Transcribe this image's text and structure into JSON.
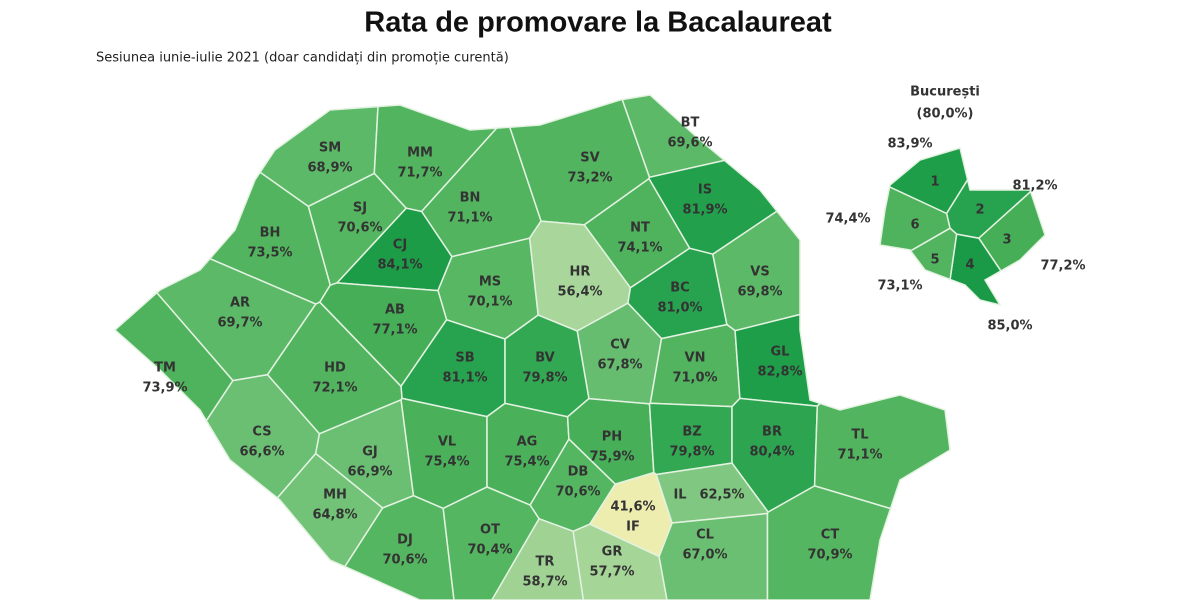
{
  "header": {
    "title": "Rata de promovare la Bacalaureat",
    "subtitle": "Sesiunea iunie-iulie 2021 (doar candidați din promoție curentă)"
  },
  "counties": [
    {
      "code": "SM",
      "value": "68,9%",
      "color": "#5cb968"
    },
    {
      "code": "MM",
      "value": "71,7%",
      "color": "#52b45f"
    },
    {
      "code": "BT",
      "value": "69,6%",
      "color": "#5cb968"
    },
    {
      "code": "SV",
      "value": "73,2%",
      "color": "#52b45f"
    },
    {
      "code": "IS",
      "value": "81,9%",
      "color": "#22a04c"
    },
    {
      "code": "BN",
      "value": "71,1%",
      "color": "#52b45f"
    },
    {
      "code": "SJ",
      "value": "70,6%",
      "color": "#55b661"
    },
    {
      "code": "CJ",
      "value": "84,1%",
      "color": "#1d9c48"
    },
    {
      "code": "BH",
      "value": "73,5%",
      "color": "#52b45f"
    },
    {
      "code": "NT",
      "value": "74,1%",
      "color": "#4fb25c"
    },
    {
      "code": "HR",
      "value": "56,4%",
      "color": "#a9d79b"
    },
    {
      "code": "MS",
      "value": "70,1%",
      "color": "#57b763"
    },
    {
      "code": "BC",
      "value": "81,0%",
      "color": "#27a24e"
    },
    {
      "code": "VS",
      "value": "69,8%",
      "color": "#5cb968"
    },
    {
      "code": "AR",
      "value": "69,7%",
      "color": "#5cb968"
    },
    {
      "code": "AB",
      "value": "77,1%",
      "color": "#45ae57"
    },
    {
      "code": "CV",
      "value": "67,8%",
      "color": "#66bd6f"
    },
    {
      "code": "SB",
      "value": "81,1%",
      "color": "#27a24e"
    },
    {
      "code": "BV",
      "value": "79,8%",
      "color": "#33a852"
    },
    {
      "code": "VN",
      "value": "71,0%",
      "color": "#52b45f"
    },
    {
      "code": "GL",
      "value": "82,8%",
      "color": "#1f9e4a"
    },
    {
      "code": "TM",
      "value": "73,9%",
      "color": "#4fb25c"
    },
    {
      "code": "HD",
      "value": "72,1%",
      "color": "#52b45f"
    },
    {
      "code": "CS",
      "value": "66,6%",
      "color": "#6abf72"
    },
    {
      "code": "GJ",
      "value": "66,9%",
      "color": "#6abf72"
    },
    {
      "code": "VL",
      "value": "75,4%",
      "color": "#4ab05a"
    },
    {
      "code": "AG",
      "value": "75,4%",
      "color": "#4ab05a"
    },
    {
      "code": "PH",
      "value": "75,9%",
      "color": "#48af59"
    },
    {
      "code": "BZ",
      "value": "79,8%",
      "color": "#33a852"
    },
    {
      "code": "BR",
      "value": "80,4%",
      "color": "#2ca450"
    },
    {
      "code": "TL",
      "value": "71,1%",
      "color": "#52b45f"
    },
    {
      "code": "MH",
      "value": "64,8%",
      "color": "#72c277"
    },
    {
      "code": "DB",
      "value": "70,6%",
      "color": "#55b661"
    },
    {
      "code": "IF",
      "value": "41,6%",
      "color": "#eeedb0"
    },
    {
      "code": "IL",
      "value": "62,5%",
      "color": "#80c881"
    },
    {
      "code": "DJ",
      "value": "70,6%",
      "color": "#55b661"
    },
    {
      "code": "OT",
      "value": "70,4%",
      "color": "#55b661"
    },
    {
      "code": "TR",
      "value": "58,7%",
      "color": "#9fd293"
    },
    {
      "code": "GR",
      "value": "57,7%",
      "color": "#a5d597"
    },
    {
      "code": "CL",
      "value": "67,0%",
      "color": "#6abf72"
    },
    {
      "code": "CT",
      "value": "70,9%",
      "color": "#55b661"
    }
  ],
  "bucharest": {
    "title": "București",
    "value": "(80,0%)",
    "sectors": [
      {
        "label": "1",
        "value": "83,9%",
        "color": "#1f9e4a"
      },
      {
        "label": "2",
        "value": "81,2%",
        "color": "#27a24e"
      },
      {
        "label": "3",
        "value": "77,2%",
        "color": "#45ae57"
      },
      {
        "label": "4",
        "value": "85,0%",
        "color": "#1a9a46"
      },
      {
        "label": "5",
        "value": "73,1%",
        "color": "#52b45f"
      },
      {
        "label": "6",
        "value": "74,4%",
        "color": "#4fb25c"
      }
    ]
  }
}
